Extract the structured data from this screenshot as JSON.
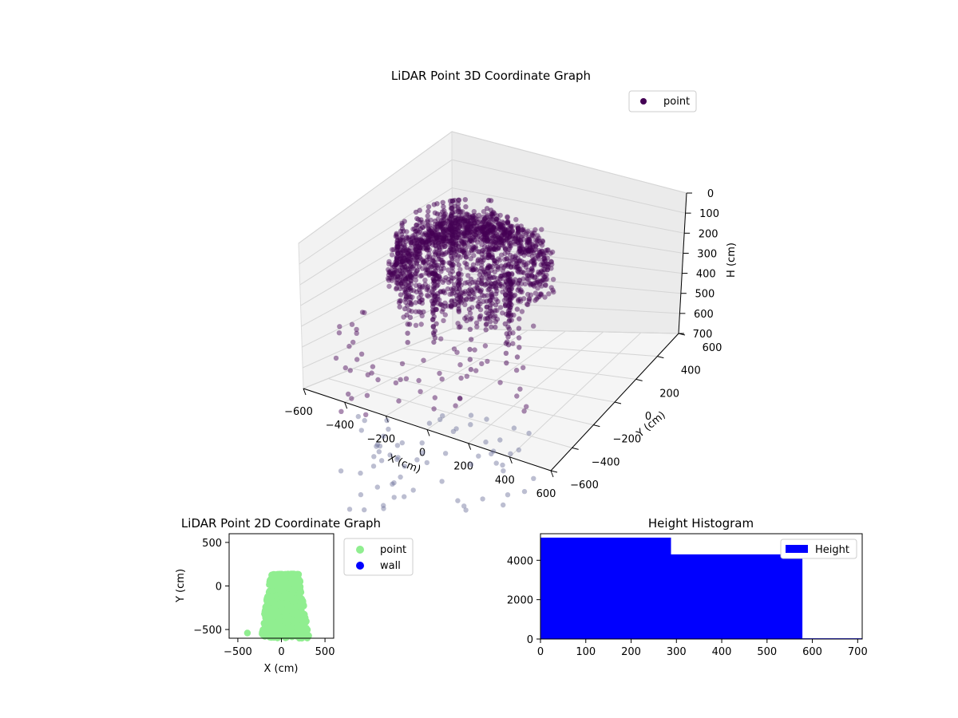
{
  "chart_data": [
    {
      "type": "scatter",
      "projection": "3d",
      "title": "LiDAR Point 3D Coordinate Graph",
      "xlabel": "X (cm)",
      "ylabel": "Y (cm)",
      "zlabel": "H (cm)",
      "xlim": [
        -600,
        600
      ],
      "ylim": [
        -600,
        600
      ],
      "zlim": [
        0,
        700
      ],
      "z_inverted": true,
      "x_ticks": [
        "−600",
        "−400",
        "−200",
        "0",
        "200",
        "400",
        "600"
      ],
      "y_ticks": [
        "−600",
        "−400",
        "−200",
        "0",
        "200",
        "400",
        "600"
      ],
      "z_ticks": [
        "0",
        "100",
        "200",
        "300",
        "400",
        "500",
        "600",
        "700"
      ],
      "grid": true,
      "legend_position": "top-right",
      "series": [
        {
          "name": "point",
          "color": "#440154",
          "description_shape": "dense dome-shaped point cloud",
          "cloud_extent": {
            "x": [
              -450,
              300
            ],
            "y": [
              -500,
              150
            ],
            "h": [
              0,
              700
            ]
          }
        }
      ]
    },
    {
      "type": "scatter",
      "title": "LiDAR Point 2D Coordinate Graph",
      "xlabel": "X (cm)",
      "ylabel": "Y (cm)",
      "xlim": [
        -600,
        600
      ],
      "ylim": [
        -600,
        600
      ],
      "x_ticks": [
        "−500",
        "0",
        "500"
      ],
      "y_ticks": [
        "−500",
        "0",
        "500"
      ],
      "legend_position": "right-outside",
      "series": [
        {
          "name": "point",
          "color": "#90ee90",
          "extent": {
            "x": [
              -420,
              480
            ],
            "y": [
              -600,
              140
            ]
          }
        },
        {
          "name": "wall",
          "color": "#0000ff",
          "points": []
        }
      ]
    },
    {
      "type": "bar",
      "title": "Height Histogram",
      "legend_position": "top-right",
      "xlim": [
        0,
        710
      ],
      "ylim": [
        0,
        5350
      ],
      "x_ticks": [
        "0",
        "100",
        "200",
        "300",
        "400",
        "500",
        "600",
        "700"
      ],
      "y_ticks": [
        "0",
        "2000",
        "4000"
      ],
      "series": [
        {
          "name": "Height",
          "color": "#0000ff",
          "bins": [
            {
              "start": 0,
              "end": 288,
              "count": 5150
            },
            {
              "start": 288,
              "end": 578,
              "count": 4300
            },
            {
              "start": 578,
              "end": 710,
              "count": 35
            }
          ]
        }
      ]
    }
  ]
}
